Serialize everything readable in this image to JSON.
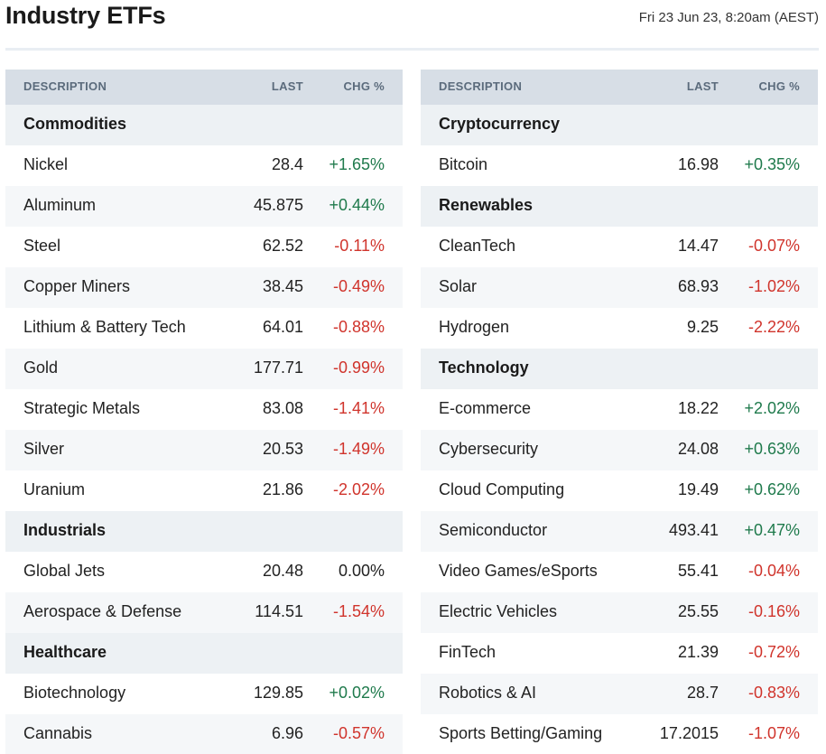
{
  "header": {
    "title": "Industry ETFs",
    "timestamp": "Fri 23 Jun 23, 8:20am (AEST)"
  },
  "columns": {
    "description": "DESCRIPTION",
    "last": "LAST",
    "chg": "CHG %"
  },
  "colors": {
    "positive": "#1f7a4c",
    "negative": "#d0342c",
    "header_bg": "#d7dee6",
    "category_bg": "#edf1f4"
  },
  "left": [
    {
      "category": "Commodities"
    },
    {
      "name": "Nickel",
      "last": "28.4",
      "chg": "+1.65%",
      "dir": "pos"
    },
    {
      "name": "Aluminum",
      "last": "45.875",
      "chg": "+0.44%",
      "dir": "pos"
    },
    {
      "name": "Steel",
      "last": "62.52",
      "chg": "-0.11%",
      "dir": "neg"
    },
    {
      "name": "Copper Miners",
      "last": "38.45",
      "chg": "-0.49%",
      "dir": "neg"
    },
    {
      "name": "Lithium & Battery Tech",
      "last": "64.01",
      "chg": "-0.88%",
      "dir": "neg"
    },
    {
      "name": "Gold",
      "last": "177.71",
      "chg": "-0.99%",
      "dir": "neg"
    },
    {
      "name": "Strategic Metals",
      "last": "83.08",
      "chg": "-1.41%",
      "dir": "neg"
    },
    {
      "name": "Silver",
      "last": "20.53",
      "chg": "-1.49%",
      "dir": "neg"
    },
    {
      "name": "Uranium",
      "last": "21.86",
      "chg": "-2.02%",
      "dir": "neg"
    },
    {
      "category": "Industrials"
    },
    {
      "name": "Global Jets",
      "last": "20.48",
      "chg": "0.00%",
      "dir": "zero"
    },
    {
      "name": "Aerospace & Defense",
      "last": "114.51",
      "chg": "-1.54%",
      "dir": "neg"
    },
    {
      "category": "Healthcare"
    },
    {
      "name": "Biotechnology",
      "last": "129.85",
      "chg": "+0.02%",
      "dir": "pos"
    },
    {
      "name": "Cannabis",
      "last": "6.96",
      "chg": "-0.57%",
      "dir": "neg"
    }
  ],
  "right": [
    {
      "category": "Cryptocurrency"
    },
    {
      "name": "Bitcoin",
      "last": "16.98",
      "chg": "+0.35%",
      "dir": "pos"
    },
    {
      "category": "Renewables"
    },
    {
      "name": "CleanTech",
      "last": "14.47",
      "chg": "-0.07%",
      "dir": "neg"
    },
    {
      "name": "Solar",
      "last": "68.93",
      "chg": "-1.02%",
      "dir": "neg"
    },
    {
      "name": "Hydrogen",
      "last": "9.25",
      "chg": "-2.22%",
      "dir": "neg"
    },
    {
      "category": "Technology"
    },
    {
      "name": "E-commerce",
      "last": "18.22",
      "chg": "+2.02%",
      "dir": "pos"
    },
    {
      "name": "Cybersecurity",
      "last": "24.08",
      "chg": "+0.63%",
      "dir": "pos"
    },
    {
      "name": "Cloud Computing",
      "last": "19.49",
      "chg": "+0.62%",
      "dir": "pos"
    },
    {
      "name": "Semiconductor",
      "last": "493.41",
      "chg": "+0.47%",
      "dir": "pos"
    },
    {
      "name": "Video Games/eSports",
      "last": "55.41",
      "chg": "-0.04%",
      "dir": "neg"
    },
    {
      "name": "Electric Vehicles",
      "last": "25.55",
      "chg": "-0.16%",
      "dir": "neg"
    },
    {
      "name": "FinTech",
      "last": "21.39",
      "chg": "-0.72%",
      "dir": "neg"
    },
    {
      "name": "Robotics & AI",
      "last": "28.7",
      "chg": "-0.83%",
      "dir": "neg"
    },
    {
      "name": "Sports Betting/Gaming",
      "last": "17.2015",
      "chg": "-1.07%",
      "dir": "neg"
    }
  ]
}
